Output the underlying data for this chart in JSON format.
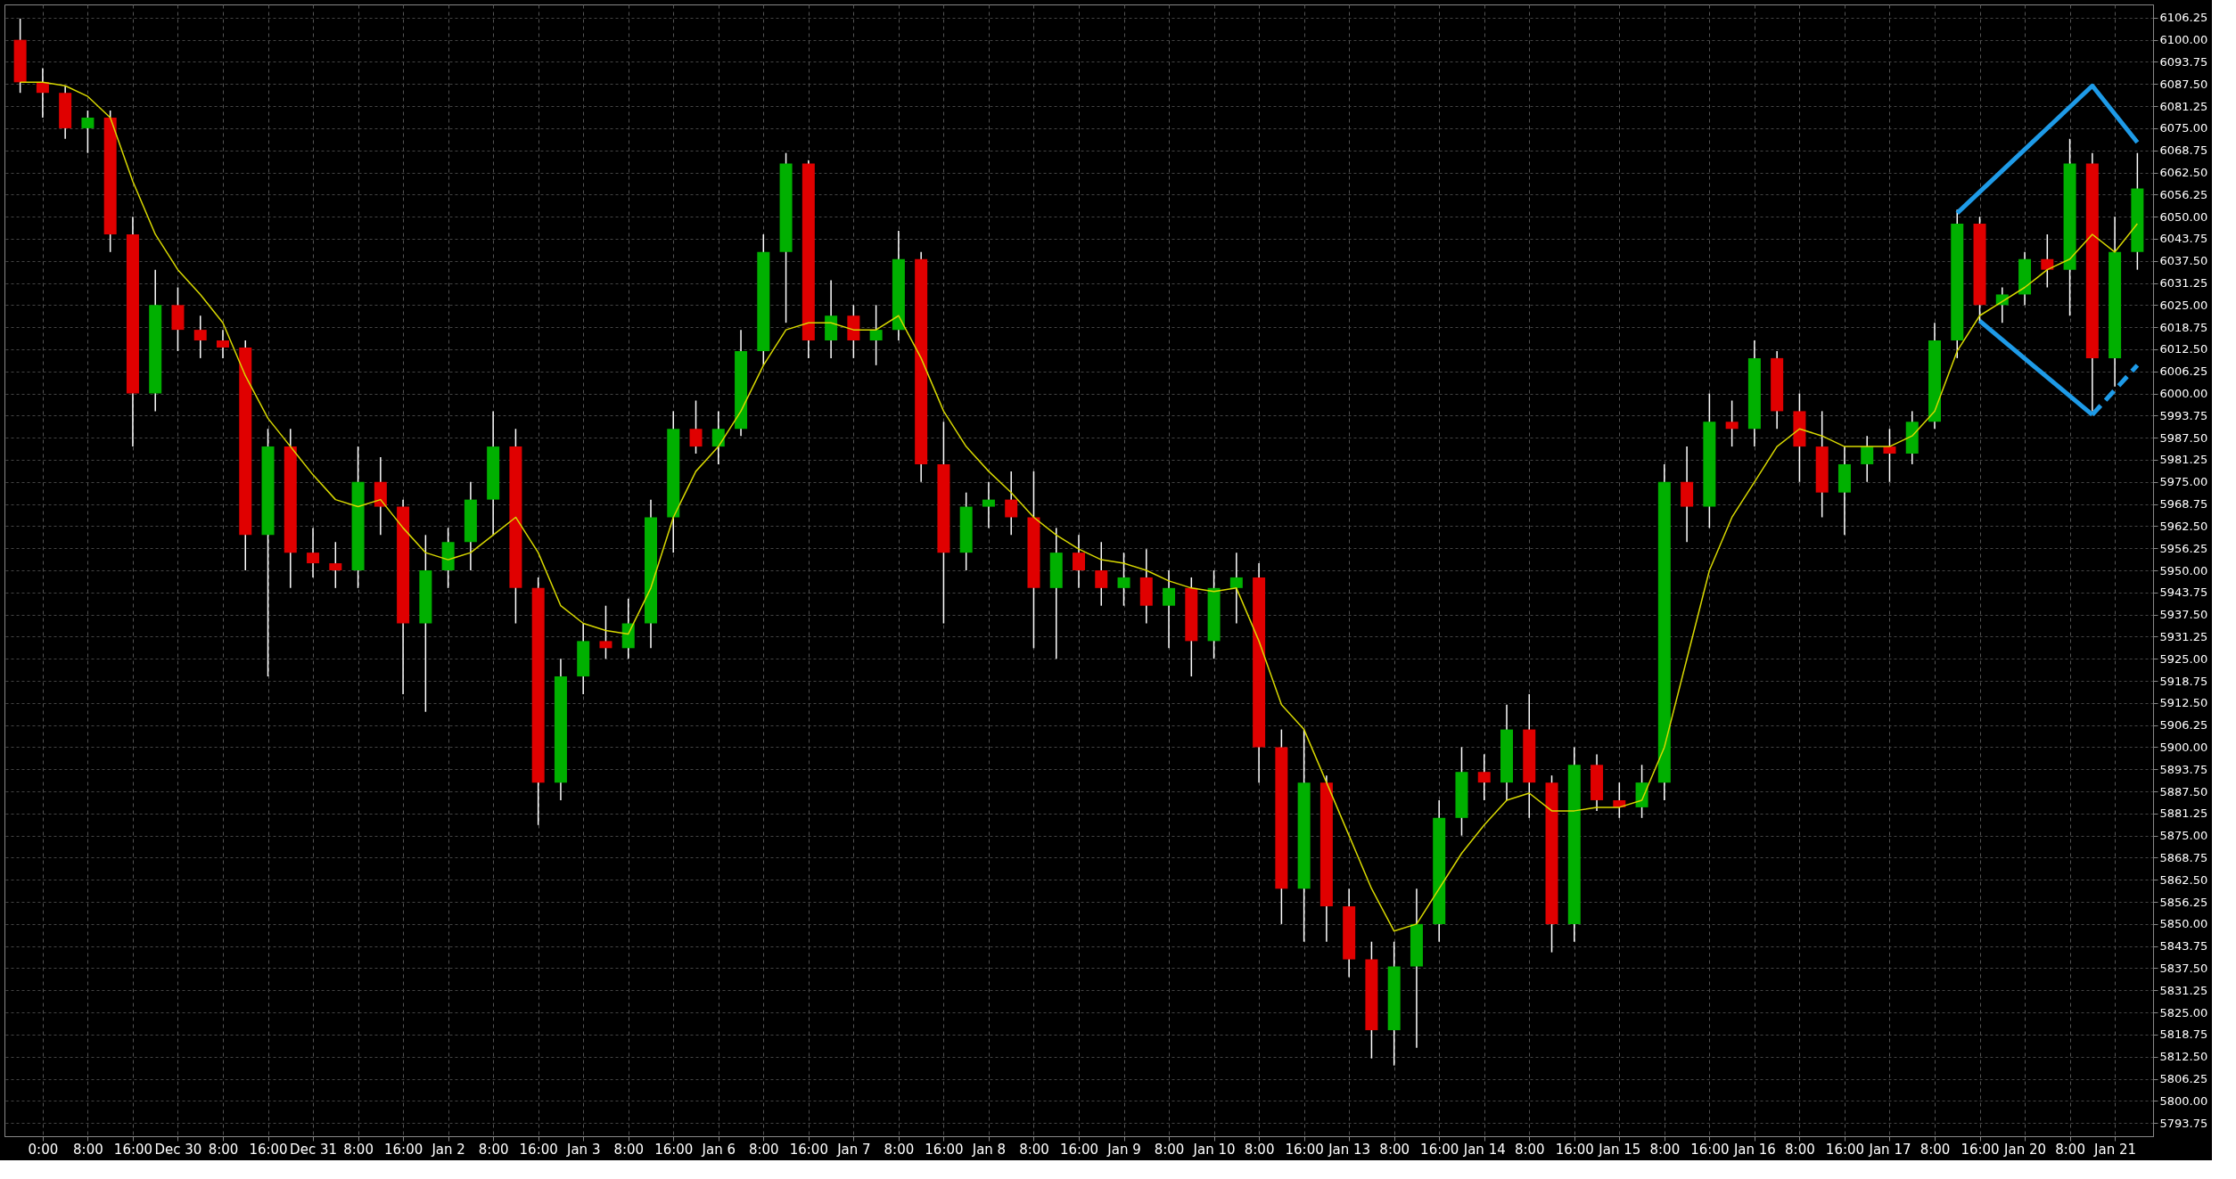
{
  "chart_data": {
    "type": "candlestick",
    "categories": [
      null,
      "0:00",
      null,
      "8:00",
      null,
      "16:00",
      null,
      "Dec 30",
      null,
      "8:00",
      null,
      "16:00",
      null,
      "Dec 31",
      null,
      "8:00",
      null,
      "16:00",
      null,
      "Jan 2",
      null,
      "8:00",
      null,
      "16:00",
      null,
      "Jan 3",
      null,
      "8:00",
      null,
      "16:00",
      null,
      "Jan 6",
      null,
      "8:00",
      null,
      "16:00",
      null,
      "Jan 7",
      null,
      "8:00",
      null,
      "16:00",
      null,
      "Jan 8",
      null,
      "8:00",
      null,
      "16:00",
      null,
      "Jan 9",
      null,
      "8:00",
      null,
      "Jan 10",
      null,
      "8:00",
      null,
      "16:00",
      null,
      "Jan 13",
      null,
      "8:00",
      null,
      "16:00",
      null,
      "Jan 14",
      null,
      "8:00",
      null,
      "16:00",
      null,
      "Jan 15",
      null,
      "8:00",
      null,
      "16:00",
      null,
      "Jan 16",
      null,
      "8:00",
      null,
      "16:00",
      null,
      "Jan 17",
      null,
      "8:00",
      null,
      "16:00",
      null,
      "Jan 20",
      null,
      "8:00",
      null,
      "Jan 21",
      null
    ],
    "ohlc": [
      [
        6100,
        6106,
        6085,
        6088
      ],
      [
        6088,
        6092,
        6078,
        6085
      ],
      [
        6085,
        6087,
        6072,
        6075
      ],
      [
        6075,
        6080,
        6068,
        6078
      ],
      [
        6078,
        6080,
        6040,
        6045
      ],
      [
        6045,
        6050,
        5985,
        6000
      ],
      [
        6000,
        6035,
        5995,
        6025
      ],
      [
        6025,
        6030,
        6012,
        6018
      ],
      [
        6018,
        6022,
        6010,
        6015
      ],
      [
        6015,
        6018,
        6010,
        6013
      ],
      [
        6013,
        6015,
        5950,
        5960
      ],
      [
        5960,
        5990,
        5920,
        5985
      ],
      [
        5985,
        5990,
        5945,
        5955
      ],
      [
        5955,
        5962,
        5948,
        5952
      ],
      [
        5952,
        5958,
        5945,
        5950
      ],
      [
        5950,
        5985,
        5945,
        5975
      ],
      [
        5975,
        5982,
        5960,
        5968
      ],
      [
        5968,
        5970,
        5915,
        5935
      ],
      [
        5935,
        5960,
        5910,
        5950
      ],
      [
        5950,
        5962,
        5945,
        5958
      ],
      [
        5958,
        5975,
        5950,
        5970
      ],
      [
        5970,
        5995,
        5960,
        5985
      ],
      [
        5985,
        5990,
        5935,
        5945
      ],
      [
        5945,
        5948,
        5878,
        5890
      ],
      [
        5890,
        5925,
        5885,
        5920
      ],
      [
        5920,
        5935,
        5915,
        5930
      ],
      [
        5930,
        5940,
        5925,
        5928
      ],
      [
        5928,
        5942,
        5925,
        5935
      ],
      [
        5935,
        5970,
        5928,
        5965
      ],
      [
        5965,
        5995,
        5955,
        5990
      ],
      [
        5990,
        5998,
        5983,
        5985
      ],
      [
        5985,
        5995,
        5980,
        5990
      ],
      [
        5990,
        6018,
        5988,
        6012
      ],
      [
        6012,
        6045,
        6008,
        6040
      ],
      [
        6040,
        6068,
        6020,
        6065
      ],
      [
        6065,
        6066,
        6010,
        6015
      ],
      [
        6015,
        6032,
        6010,
        6022
      ],
      [
        6022,
        6025,
        6010,
        6015
      ],
      [
        6015,
        6025,
        6008,
        6018
      ],
      [
        6018,
        6046,
        6015,
        6038
      ],
      [
        6038,
        6040,
        5975,
        5980
      ],
      [
        5980,
        5992,
        5935,
        5955
      ],
      [
        5955,
        5972,
        5950,
        5968
      ],
      [
        5968,
        5975,
        5962,
        5970
      ],
      [
        5970,
        5978,
        5960,
        5965
      ],
      [
        5965,
        5978,
        5928,
        5945
      ],
      [
        5945,
        5962,
        5925,
        5955
      ],
      [
        5955,
        5960,
        5945,
        5950
      ],
      [
        5950,
        5958,
        5940,
        5945
      ],
      [
        5945,
        5955,
        5940,
        5948
      ],
      [
        5948,
        5956,
        5935,
        5940
      ],
      [
        5940,
        5950,
        5928,
        5945
      ],
      [
        5945,
        5948,
        5920,
        5930
      ],
      [
        5930,
        5950,
        5925,
        5945
      ],
      [
        5945,
        5955,
        5935,
        5948
      ],
      [
        5948,
        5952,
        5890,
        5900
      ],
      [
        5900,
        5905,
        5850,
        5860
      ],
      [
        5860,
        5905,
        5845,
        5890
      ],
      [
        5890,
        5892,
        5845,
        5855
      ],
      [
        5855,
        5860,
        5835,
        5840
      ],
      [
        5840,
        5845,
        5812,
        5820
      ],
      [
        5820,
        5845,
        5810,
        5838
      ],
      [
        5838,
        5860,
        5815,
        5850
      ],
      [
        5850,
        5885,
        5845,
        5880
      ],
      [
        5880,
        5900,
        5875,
        5893
      ],
      [
        5893,
        5898,
        5885,
        5890
      ],
      [
        5890,
        5912,
        5885,
        5905
      ],
      [
        5905,
        5915,
        5880,
        5890
      ],
      [
        5890,
        5892,
        5842,
        5850
      ],
      [
        5850,
        5900,
        5845,
        5895
      ],
      [
        5895,
        5898,
        5882,
        5885
      ],
      [
        5885,
        5890,
        5880,
        5883
      ],
      [
        5883,
        5895,
        5880,
        5890
      ],
      [
        5890,
        5980,
        5885,
        5975
      ],
      [
        5975,
        5985,
        5958,
        5968
      ],
      [
        5968,
        6000,
        5962,
        5992
      ],
      [
        5992,
        5998,
        5985,
        5990
      ],
      [
        5990,
        6015,
        5985,
        6010
      ],
      [
        6010,
        6012,
        5990,
        5995
      ],
      [
        5995,
        6000,
        5975,
        5985
      ],
      [
        5985,
        5995,
        5965,
        5972
      ],
      [
        5972,
        5985,
        5960,
        5980
      ],
      [
        5980,
        5988,
        5975,
        5985
      ],
      [
        5985,
        5990,
        5975,
        5983
      ],
      [
        5983,
        5995,
        5980,
        5992
      ],
      [
        5992,
        6020,
        5990,
        6015
      ],
      [
        6015,
        6052,
        6010,
        6048
      ],
      [
        6048,
        6050,
        6020,
        6025
      ],
      [
        6025,
        6030,
        6020,
        6028
      ],
      [
        6028,
        6040,
        6025,
        6038
      ],
      [
        6038,
        6045,
        6030,
        6035
      ],
      [
        6035,
        6072,
        6022,
        6065
      ],
      [
        6065,
        6068,
        5995,
        6010
      ],
      [
        6010,
        6050,
        6002,
        6040
      ],
      [
        6040,
        6068,
        6035,
        6058
      ]
    ],
    "colors": [
      "#e00000",
      "#e00000",
      "#e00000",
      "#00b000",
      "#e00000",
      "#e00000",
      "#00b000",
      "#e00000",
      "#e00000",
      "#e00000",
      "#e00000",
      "#00b000",
      "#e00000",
      "#e00000",
      "#e00000",
      "#00b000",
      "#e00000",
      "#e00000",
      "#00b000",
      "#00b000",
      "#00b000",
      "#00b000",
      "#e00000",
      "#e00000",
      "#00b000",
      "#00b000",
      "#e00000",
      "#00b000",
      "#00b000",
      "#00b000",
      "#e00000",
      "#00b000",
      "#00b000",
      "#00b000",
      "#00b000",
      "#e00000",
      "#00b000",
      "#e00000",
      "#00b000",
      "#00b000",
      "#e00000",
      "#e00000",
      "#00b000",
      "#00b000",
      "#e00000",
      "#e00000",
      "#00b000",
      "#e00000",
      "#e00000",
      "#00b000",
      "#e00000",
      "#00b000",
      "#e00000",
      "#00b000",
      "#00b000",
      "#e00000",
      "#e00000",
      "#00b000",
      "#e00000",
      "#e00000",
      "#e00000",
      "#00b000",
      "#00b000",
      "#00b000",
      "#00b000",
      "#e00000",
      "#00b000",
      "#e00000",
      "#e00000",
      "#00b000",
      "#e00000",
      "#e00000",
      "#00b000",
      "#00b000",
      "#e00000",
      "#00b000",
      "#e00000",
      "#00b000",
      "#e00000",
      "#e00000",
      "#e00000",
      "#00b000",
      "#00b000",
      "#e00000",
      "#00b000",
      "#00b000",
      "#00b000",
      "#e00000",
      "#00b000",
      "#00b000",
      "#e00000",
      "#00b000",
      "#e00000",
      "#00b000",
      "#00b000"
    ],
    "series": [
      {
        "type": "line",
        "color": "#d8d800",
        "values": [
          6088,
          6088,
          6087,
          6084,
          6078,
          6060,
          6045,
          6035,
          6028,
          6020,
          6005,
          5993,
          5985,
          5977,
          5970,
          5968,
          5970,
          5962,
          5955,
          5953,
          5955,
          5960,
          5965,
          5955,
          5940,
          5935,
          5933,
          5932,
          5945,
          5965,
          5978,
          5985,
          5995,
          6008,
          6018,
          6020,
          6020,
          6018,
          6018,
          6022,
          6010,
          5995,
          5985,
          5978,
          5972,
          5965,
          5960,
          5956,
          5953,
          5952,
          5950,
          5947,
          5945,
          5944,
          5945,
          5930,
          5912,
          5905,
          5890,
          5875,
          5860,
          5848,
          5850,
          5860,
          5870,
          5878,
          5885,
          5887,
          5882,
          5882,
          5883,
          5883,
          5885,
          5900,
          5925,
          5950,
          5965,
          5975,
          5985,
          5990,
          5988,
          5985,
          5985,
          5985,
          5988,
          5995,
          6012,
          6022,
          6026,
          6030,
          6035,
          6038,
          6045,
          6040,
          6048
        ]
      },
      {
        "type": "line",
        "color": "#1e9be8",
        "values": [
          null,
          null,
          null,
          null,
          null,
          null,
          null,
          null,
          null,
          null,
          null,
          null,
          null,
          null,
          null,
          null,
          null,
          null,
          null,
          null,
          null,
          null,
          null,
          null,
          null,
          null,
          null,
          null,
          null,
          null,
          null,
          null,
          null,
          null,
          null,
          null,
          null,
          null,
          null,
          null,
          null,
          null,
          null,
          null,
          null,
          null,
          null,
          null,
          null,
          null,
          null,
          null,
          null,
          null,
          null,
          null,
          null,
          null,
          null,
          null,
          null,
          null,
          null,
          null,
          null,
          null,
          null,
          null,
          null,
          null,
          null,
          null,
          null,
          null,
          null,
          null,
          null,
          null,
          null,
          null,
          null,
          null,
          null,
          null,
          null,
          null,
          6051,
          null,
          null,
          null,
          null,
          null,
          6087,
          null,
          6071
        ]
      },
      {
        "type": "line",
        "color": "#1e9be8",
        "values": [
          null,
          null,
          null,
          null,
          null,
          null,
          null,
          null,
          null,
          null,
          null,
          null,
          null,
          null,
          null,
          null,
          null,
          null,
          null,
          null,
          null,
          null,
          null,
          null,
          null,
          null,
          null,
          null,
          null,
          null,
          null,
          null,
          null,
          null,
          null,
          null,
          null,
          null,
          null,
          null,
          null,
          null,
          null,
          null,
          null,
          null,
          null,
          null,
          null,
          null,
          null,
          null,
          null,
          null,
          null,
          null,
          null,
          null,
          null,
          null,
          null,
          null,
          null,
          null,
          null,
          null,
          null,
          null,
          null,
          null,
          null,
          null,
          null,
          null,
          null,
          null,
          null,
          null,
          null,
          null,
          null,
          null,
          null,
          null,
          null,
          null,
          null,
          6020.5,
          null,
          null,
          null,
          null,
          5994,
          null,
          null
        ]
      },
      {
        "type": "line",
        "color": "#1e9be8",
        "line_style": "dashed",
        "values": [
          null,
          null,
          null,
          null,
          null,
          null,
          null,
          null,
          null,
          null,
          null,
          null,
          null,
          null,
          null,
          null,
          null,
          null,
          null,
          null,
          null,
          null,
          null,
          null,
          null,
          null,
          null,
          null,
          null,
          null,
          null,
          null,
          null,
          null,
          null,
          null,
          null,
          null,
          null,
          null,
          null,
          null,
          null,
          null,
          null,
          null,
          null,
          null,
          null,
          null,
          null,
          null,
          null,
          null,
          null,
          null,
          null,
          null,
          null,
          null,
          null,
          null,
          null,
          null,
          null,
          null,
          null,
          null,
          null,
          null,
          null,
          null,
          null,
          null,
          null,
          null,
          null,
          null,
          null,
          null,
          null,
          null,
          null,
          null,
          null,
          null,
          null,
          null,
          null,
          null,
          null,
          null,
          5994,
          null,
          6008
        ]
      }
    ],
    "ylim": [
      5790,
      6110
    ],
    "yticks": [
      5793.75,
      {
        "value": 5800,
        "label": "5800.00"
      },
      5806.25,
      {
        "value": 5812.5,
        "label": "5812.50"
      },
      5818.75,
      {
        "value": 5825,
        "label": "5825.00"
      },
      5831.25,
      {
        "value": 5837.5,
        "label": "5837.50"
      },
      5843.75,
      {
        "value": 5850,
        "label": "5850.00"
      },
      5856.25,
      {
        "value": 5862.5,
        "label": "5862.50"
      },
      5868.75,
      {
        "value": 5875,
        "label": "5875.00"
      },
      5881.25,
      {
        "value": 5887.5,
        "label": "5887.50"
      },
      5893.75,
      {
        "value": 5900,
        "label": "5900.00"
      },
      5906.25,
      {
        "value": 5912.5,
        "label": "5912.50"
      },
      5918.75,
      {
        "value": 5925,
        "label": "5925.00"
      },
      5931.25,
      {
        "value": 5937.5,
        "label": "5937.50"
      },
      5943.75,
      {
        "value": 5950,
        "label": "5950.00"
      },
      5956.25,
      {
        "value": 5962.5,
        "label": "5962.50"
      },
      5968.75,
      {
        "value": 5975,
        "label": "5975.00"
      },
      5981.25,
      {
        "value": 5987.5,
        "label": "5987.50"
      },
      5993.75,
      {
        "value": 6000,
        "label": "6000.00"
      },
      6006.25,
      {
        "value": 6012.5,
        "label": "6012.50"
      },
      6018.75,
      {
        "value": 6025,
        "label": "6025.00"
      },
      6031.25,
      {
        "value": 6037.5,
        "label": "6037.50"
      },
      6043.75,
      {
        "value": 6050,
        "label": "6050.00"
      },
      6056.25,
      {
        "value": 6062.5,
        "label": "6062.50"
      },
      6068.75,
      {
        "value": 6075,
        "label": "6075.00"
      },
      6081.25,
      {
        "value": 6087.5,
        "label": "6087.50"
      },
      6093.75,
      {
        "value": 6100,
        "label": "6100.00"
      },
      6106.25
    ],
    "grid": true
  }
}
